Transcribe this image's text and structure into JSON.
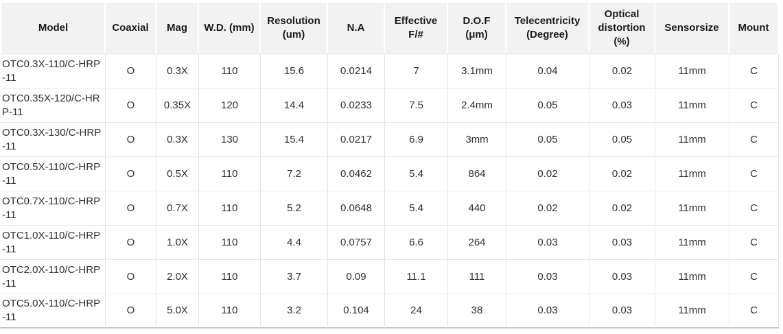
{
  "colors": {
    "header_bg": "#f2f2f2",
    "grid_line": "#e4e4e4",
    "bottom_line": "#c6c6c6",
    "header_text": "#1b1b1b",
    "cell_text": "#303030"
  },
  "table": {
    "columns": [
      {
        "key": "model",
        "label": "Model"
      },
      {
        "key": "coaxial",
        "label": "Coaxial"
      },
      {
        "key": "mag",
        "label": "Mag"
      },
      {
        "key": "wd",
        "label": "W.D. (mm)"
      },
      {
        "key": "resolution",
        "label": "Resolution (um)"
      },
      {
        "key": "na",
        "label": "N.A"
      },
      {
        "key": "effective-f",
        "label": "Effective F/#"
      },
      {
        "key": "dof",
        "label": "D.O.F (μm)"
      },
      {
        "key": "telecentricity",
        "label": "Telecentricity (Degree)"
      },
      {
        "key": "distortion",
        "label": "Optical distortion (%)"
      },
      {
        "key": "sensorsize",
        "label": "Sensorsize"
      },
      {
        "key": "mount",
        "label": "Mount"
      }
    ],
    "rows": [
      [
        "OTC0.3X-110/C-HRP-11",
        "O",
        "0.3X",
        "110",
        "15.6",
        "0.0214",
        "7",
        "3.1mm",
        "0.04",
        "0.02",
        "11mm",
        "C"
      ],
      [
        "OTC0.35X-120/C-HRP-11",
        "O",
        "0.35X",
        "120",
        "14.4",
        "0.0233",
        "7.5",
        "2.4mm",
        "0.05",
        "0.03",
        "11mm",
        "C"
      ],
      [
        "OTC0.3X-130/C-HRP-11",
        "O",
        "0.3X",
        "130",
        "15.4",
        "0.0217",
        "6.9",
        "3mm",
        "0.05",
        "0.05",
        "11mm",
        "C"
      ],
      [
        "OTC0.5X-110/C-HRP-11",
        "O",
        "0.5X",
        "110",
        "7.2",
        "0.0462",
        "5.4",
        "864",
        "0.02",
        "0.02",
        "11mm",
        "C"
      ],
      [
        "OTC0.7X-110/C-HRP-11",
        "O",
        "0.7X",
        "110",
        "5.2",
        "0.0648",
        "5.4",
        "440",
        "0.02",
        "0.02",
        "11mm",
        "C"
      ],
      [
        "OTC1.0X-110/C-HRP-11",
        "O",
        "1.0X",
        "110",
        "4.4",
        "0.0757",
        "6.6",
        "264",
        "0.03",
        "0.03",
        "11mm",
        "C"
      ],
      [
        "OTC2.0X-110/C-HRP-11",
        "O",
        "2.0X",
        "110",
        "3.7",
        "0.09",
        "11.1",
        "111",
        "0.03",
        "0.03",
        "11mm",
        "C"
      ],
      [
        "OTC5.0X-110/C-HRP-11",
        "O",
        "5.0X",
        "110",
        "3.2",
        "0.104",
        "24",
        "38",
        "0.03",
        "0.03",
        "11mm",
        "C"
      ]
    ]
  },
  "chart_data": {
    "type": "table",
    "title": "",
    "columns": [
      "Model",
      "Coaxial",
      "Mag",
      "W.D. (mm)",
      "Resolution (um)",
      "N.A",
      "Effective F/#",
      "D.O.F (μm)",
      "Telecentricity (Degree)",
      "Optical distortion (%)",
      "Sensorsize",
      "Mount"
    ],
    "rows": [
      [
        "OTC0.3X-110/C-HRP-11",
        "O",
        "0.3X",
        "110",
        "15.6",
        "0.0214",
        "7",
        "3.1mm",
        "0.04",
        "0.02",
        "11mm",
        "C"
      ],
      [
        "OTC0.35X-120/C-HRP-11",
        "O",
        "0.35X",
        "120",
        "14.4",
        "0.0233",
        "7.5",
        "2.4mm",
        "0.05",
        "0.03",
        "11mm",
        "C"
      ],
      [
        "OTC0.3X-130/C-HRP-11",
        "O",
        "0.3X",
        "130",
        "15.4",
        "0.0217",
        "6.9",
        "3mm",
        "0.05",
        "0.05",
        "11mm",
        "C"
      ],
      [
        "OTC0.5X-110/C-HRP-11",
        "O",
        "0.5X",
        "110",
        "7.2",
        "0.0462",
        "5.4",
        "864",
        "0.02",
        "0.02",
        "11mm",
        "C"
      ],
      [
        "OTC0.7X-110/C-HRP-11",
        "O",
        "0.7X",
        "110",
        "5.2",
        "0.0648",
        "5.4",
        "440",
        "0.02",
        "0.02",
        "11mm",
        "C"
      ],
      [
        "OTC1.0X-110/C-HRP-11",
        "O",
        "1.0X",
        "110",
        "4.4",
        "0.0757",
        "6.6",
        "264",
        "0.03",
        "0.03",
        "11mm",
        "C"
      ],
      [
        "OTC2.0X-110/C-HRP-11",
        "O",
        "2.0X",
        "110",
        "3.7",
        "0.09",
        "11.1",
        "111",
        "0.03",
        "0.03",
        "11mm",
        "C"
      ],
      [
        "OTC5.0X-110/C-HRP-11",
        "O",
        "5.0X",
        "110",
        "3.2",
        "0.104",
        "24",
        "38",
        "0.03",
        "0.03",
        "11mm",
        "C"
      ]
    ]
  }
}
